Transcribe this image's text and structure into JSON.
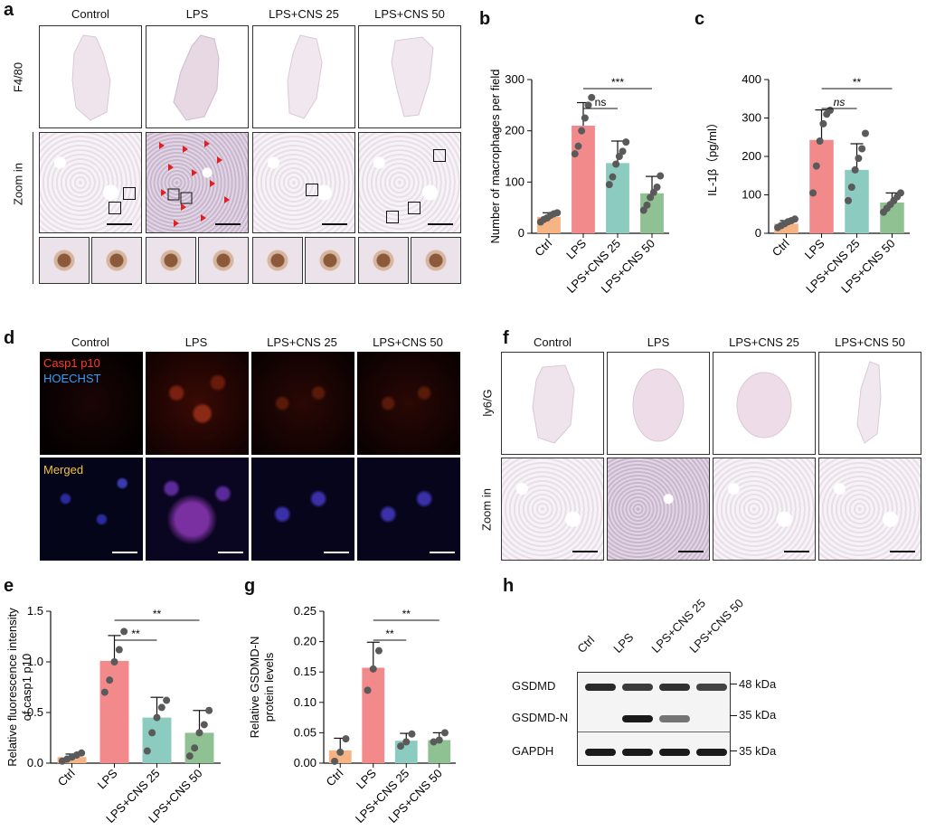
{
  "panels": {
    "a": "a",
    "b": "b",
    "c": "c",
    "d": "d",
    "e": "e",
    "f": "f",
    "g": "g",
    "h": "h"
  },
  "groups": [
    "Control",
    "LPS",
    "LPS+CNS 25",
    "LPS+CNS 50"
  ],
  "panel_a": {
    "row1": "F4/80",
    "row2": "Zoom in"
  },
  "panel_d": {
    "stain1": "Casp1 p10",
    "stain2": "HOECHST",
    "merged": "Merged"
  },
  "panel_f": {
    "row1": "ly6/G",
    "row2": "Zoom in"
  },
  "panel_h": {
    "lanes": [
      "Ctrl",
      "LPS",
      "LPS+CNS 25",
      "LPS+CNS 50"
    ],
    "rows": [
      {
        "name": "GSDMD",
        "kda": "48 kDa",
        "intensity": [
          0.9,
          0.8,
          0.85,
          0.75
        ]
      },
      {
        "name": "GSDMD-N",
        "kda": "35 kDa",
        "intensity": [
          0,
          1,
          0.45,
          0
        ]
      },
      {
        "name": "GAPDH",
        "kda": "35 kDa",
        "intensity": [
          1,
          1,
          1,
          1
        ]
      }
    ]
  },
  "colors": {
    "ctrl": "#f6b383",
    "lps": "#f28a8c",
    "cns25": "#8ccbbf",
    "cns50": "#8fc193",
    "dot": "#5a5a5a"
  },
  "chart_data": [
    {
      "id": "b",
      "type": "bar",
      "categories": [
        "Ctrl",
        "LPS",
        "LPS+CNS 25",
        "LPS+CNS 50"
      ],
      "values": [
        32,
        210,
        137,
        78
      ],
      "errors": [
        8,
        45,
        43,
        33
      ],
      "points": [
        [
          22,
          27,
          30,
          35,
          38,
          40
        ],
        [
          155,
          170,
          200,
          225,
          250,
          265
        ],
        [
          95,
          110,
          135,
          150,
          160,
          178
        ],
        [
          45,
          55,
          70,
          80,
          90,
          112
        ]
      ],
      "ylabel": "Number of macrophages per field",
      "ylim": [
        0,
        300
      ],
      "yticks": [
        0,
        100,
        200,
        300
      ],
      "sig": [
        {
          "from": 1,
          "to": 2,
          "label": "ns",
          "level": 0
        },
        {
          "from": 1,
          "to": 3,
          "label": "***",
          "level": 1
        }
      ]
    },
    {
      "id": "c",
      "type": "bar",
      "categories": [
        "Ctrl",
        "LPS",
        "LPS+CNS 25",
        "LPS+CNS 50"
      ],
      "values": [
        25,
        243,
        165,
        80
      ],
      "errors": [
        8,
        78,
        68,
        25
      ],
      "points": [
        [
          15,
          20,
          25,
          30,
          33,
          37
        ],
        [
          105,
          175,
          240,
          285,
          310,
          320
        ],
        [
          85,
          120,
          165,
          195,
          220,
          260
        ],
        [
          55,
          65,
          75,
          85,
          95,
          105
        ]
      ],
      "ylabel": "IL-1β（pg/ml）",
      "ylim": [
        0,
        400
      ],
      "yticks": [
        0,
        100,
        200,
        300,
        400
      ],
      "sig": [
        {
          "from": 1,
          "to": 2,
          "label": "ns",
          "level": 0,
          "italic": true
        },
        {
          "from": 1,
          "to": 3,
          "label": "**",
          "level": 1
        }
      ]
    },
    {
      "id": "e",
      "type": "bar",
      "categories": [
        "Ctrl",
        "LPS",
        "LPS+CNS 25",
        "LPS+CNS 50"
      ],
      "values": [
        0.06,
        1.01,
        0.45,
        0.3
      ],
      "errors": [
        0.03,
        0.25,
        0.2,
        0.22
      ],
      "points": [
        [
          0.02,
          0.04,
          0.06,
          0.08,
          0.1
        ],
        [
          0.7,
          0.82,
          1.0,
          1.12,
          1.3
        ],
        [
          0.12,
          0.3,
          0.45,
          0.55,
          0.62
        ],
        [
          0.07,
          0.15,
          0.3,
          0.38,
          0.52
        ]
      ],
      "ylabel": "Relative fluorescence intensity",
      "ylabel2": "of casp1 p10",
      "ylim": [
        0,
        1.5
      ],
      "yticks": [
        0.0,
        0.5,
        1.0,
        1.5
      ],
      "ytickfmt": 1,
      "sig": [
        {
          "from": 1,
          "to": 2,
          "label": "**",
          "level": 0
        },
        {
          "from": 1,
          "to": 3,
          "label": "**",
          "level": 1
        }
      ]
    },
    {
      "id": "g",
      "type": "bar",
      "categories": [
        "Ctrl",
        "LPS",
        "LPS+CNS 25",
        "LPS+CNS 50"
      ],
      "values": [
        0.021,
        0.157,
        0.037,
        0.038
      ],
      "errors": [
        0.02,
        0.042,
        0.012,
        0.012
      ],
      "points": [
        [
          0.003,
          0.018,
          0.04
        ],
        [
          0.12,
          0.155,
          0.185
        ],
        [
          0.028,
          0.035,
          0.048
        ],
        [
          0.035,
          0.038,
          0.05
        ]
      ],
      "ylabel": "Relative GSDMD-N",
      "ylabel2": "protein levels",
      "ylim": [
        0,
        0.25
      ],
      "yticks": [
        0.0,
        0.05,
        0.1,
        0.15,
        0.2,
        0.25
      ],
      "ytickfmt": 2,
      "sig": [
        {
          "from": 1,
          "to": 2,
          "label": "**",
          "level": 0
        },
        {
          "from": 1,
          "to": 3,
          "label": "**",
          "level": 1
        }
      ]
    }
  ]
}
